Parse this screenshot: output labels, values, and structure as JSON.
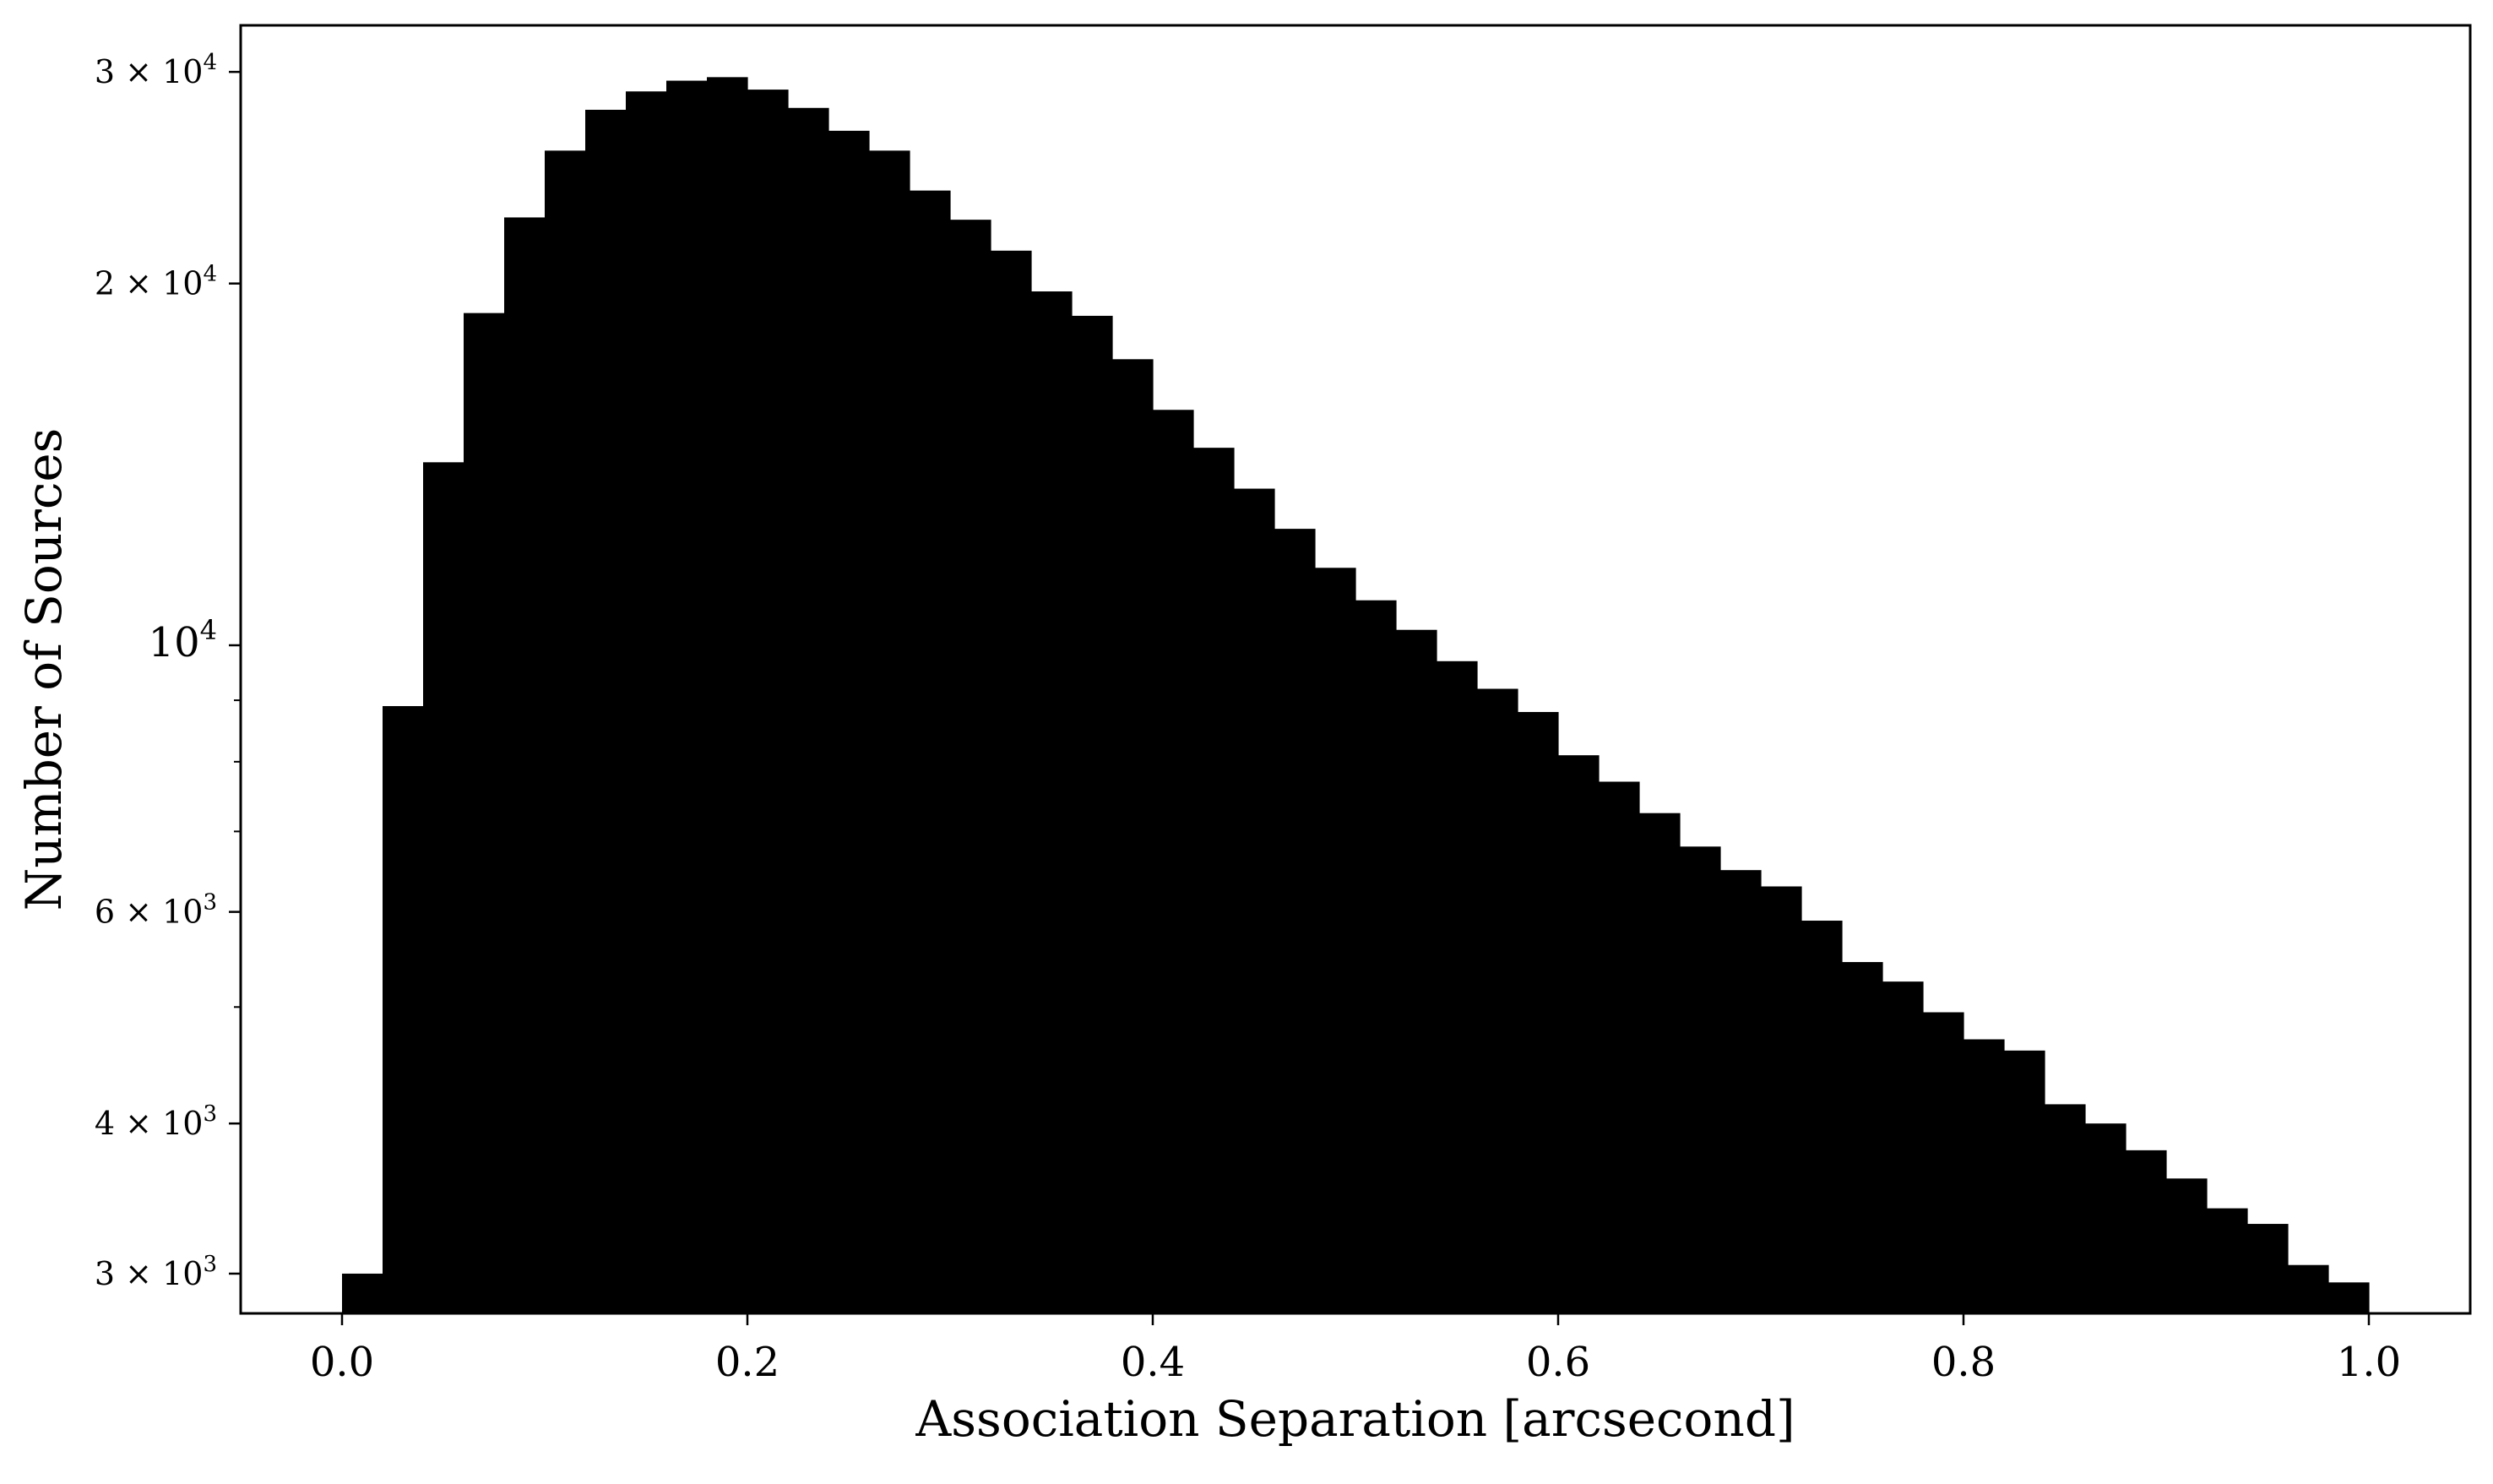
{
  "chart_data": {
    "type": "bar",
    "subtype": "histogram",
    "title": "",
    "xlabel": "Association Separation [arcsecond]",
    "ylabel": "Number of Sources",
    "xlim": [
      -0.05,
      1.05
    ],
    "ylim": [
      2780,
      32800
    ],
    "yscale": "log",
    "grid": false,
    "legend": "none",
    "bar_color": "#000000",
    "x_ticks": [
      {
        "value": 0.0,
        "label": "0.0"
      },
      {
        "value": 0.2,
        "label": "0.2"
      },
      {
        "value": 0.4,
        "label": "0.4"
      },
      {
        "value": 0.6,
        "label": "0.6"
      },
      {
        "value": 0.8,
        "label": "0.8"
      },
      {
        "value": 1.0,
        "label": "1.0"
      }
    ],
    "y_ticks": [
      {
        "value": 3000,
        "mantissa": "3",
        "exponent": "3"
      },
      {
        "value": 4000,
        "mantissa": "4",
        "exponent": "3"
      },
      {
        "value": 6000,
        "mantissa": "6",
        "exponent": "3"
      },
      {
        "value": 10000,
        "mantissa": "",
        "exponent": "4"
      },
      {
        "value": 20000,
        "mantissa": "2",
        "exponent": "4"
      },
      {
        "value": 30000,
        "mantissa": "3",
        "exponent": "4"
      }
    ],
    "y_minor_ticks": [
      5000,
      7000,
      8000,
      9000
    ],
    "bin_edges": [
      0.0,
      0.02,
      0.04,
      0.06,
      0.08,
      0.1,
      0.12,
      0.14,
      0.16,
      0.18,
      0.2,
      0.22,
      0.24,
      0.26,
      0.28,
      0.3,
      0.32,
      0.34,
      0.36,
      0.38,
      0.4,
      0.42,
      0.44,
      0.46,
      0.48,
      0.5,
      0.52,
      0.54,
      0.56,
      0.58,
      0.6,
      0.62,
      0.64,
      0.66,
      0.68,
      0.7,
      0.72,
      0.74,
      0.76,
      0.78,
      0.8,
      0.82,
      0.84,
      0.86,
      0.88,
      0.9,
      0.92,
      0.94,
      0.96,
      0.98,
      1.0
    ],
    "values": [
      3000,
      8900,
      14200,
      18900,
      22700,
      25800,
      27900,
      28900,
      29500,
      29700,
      29000,
      28000,
      26800,
      25800,
      23900,
      22600,
      21300,
      19700,
      18800,
      17300,
      15700,
      14600,
      13500,
      12500,
      11600,
      10900,
      10300,
      9700,
      9200,
      8800,
      8100,
      7700,
      7250,
      6800,
      6500,
      6300,
      5900,
      5450,
      5250,
      4950,
      4700,
      4600,
      4150,
      4000,
      3800,
      3600,
      3400,
      3300,
      3050,
      2950
    ]
  }
}
